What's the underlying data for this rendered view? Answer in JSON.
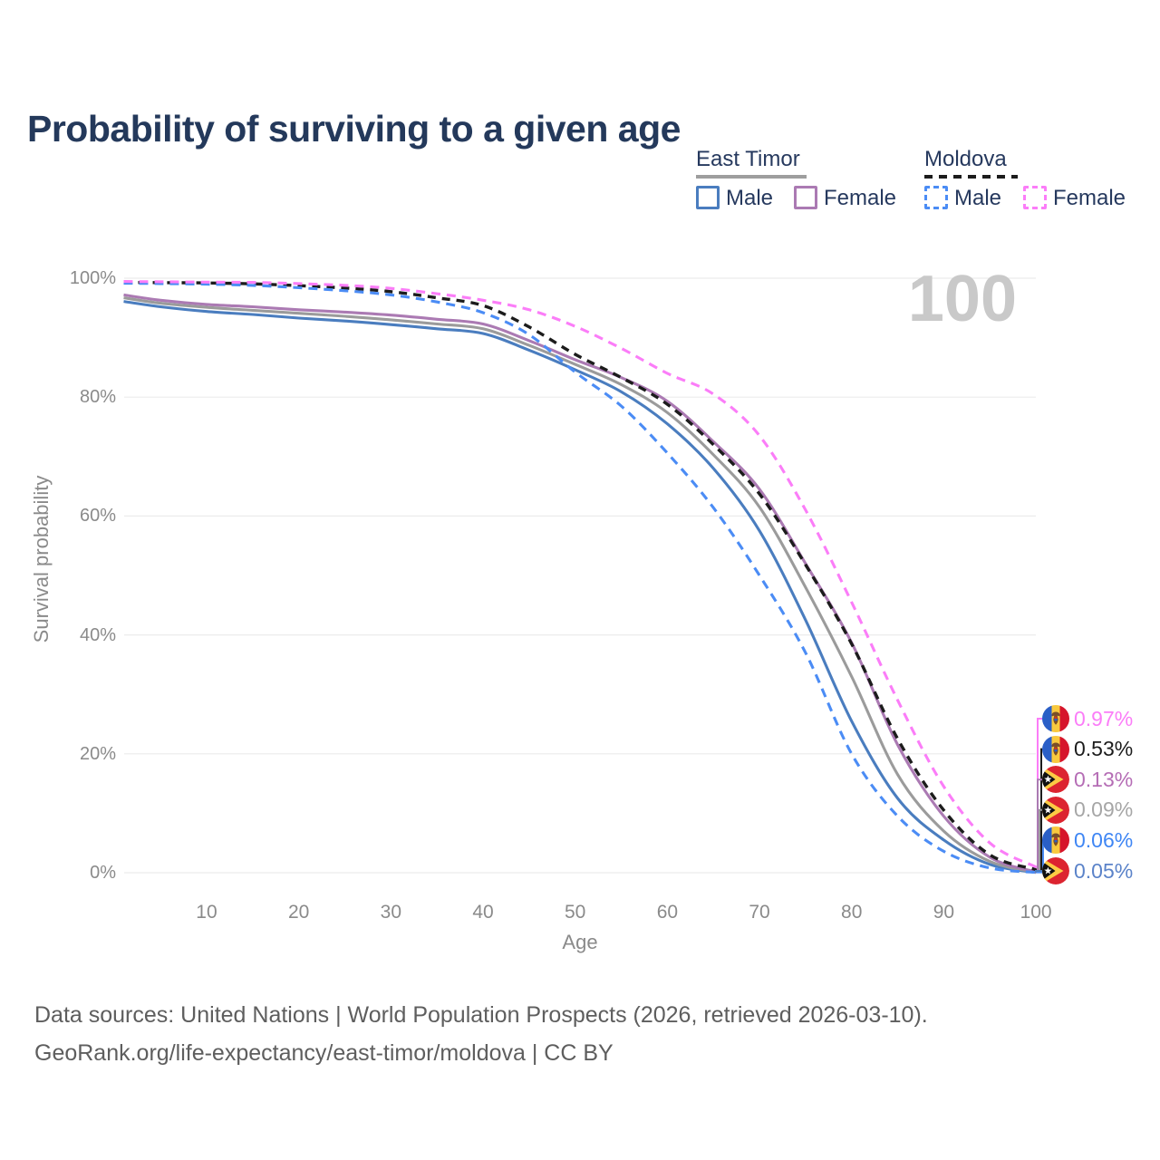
{
  "header": {
    "title": "Probability of surviving to a given age"
  },
  "watermark": "100",
  "legend": {
    "groups": [
      {
        "name": "East Timor",
        "line_style": "solid",
        "underline_color": "#9e9e9e",
        "items": [
          {
            "label": "Male",
            "color": "#4a7dbf",
            "box_style": "solid"
          },
          {
            "label": "Female",
            "color": "#ab7ab3",
            "box_style": "solid"
          }
        ]
      },
      {
        "name": "Moldova",
        "line_style": "dashed",
        "underline_color": "#1c1c1c",
        "items": [
          {
            "label": "Male",
            "color": "#4b8cf5",
            "box_style": "dashed"
          },
          {
            "label": "Female",
            "color": "#fb7df8",
            "box_style": "dashed"
          }
        ]
      }
    ]
  },
  "chart_data": {
    "type": "line",
    "title": "Probability of surviving to a given age",
    "xlabel": "Age",
    "ylabel": "Survival probability",
    "xlim": [
      1,
      100
    ],
    "ylim": [
      0,
      100
    ],
    "grid": "horizontal",
    "legend_position": "top-right",
    "x_tick_values": [
      10,
      20,
      30,
      40,
      50,
      60,
      70,
      80,
      90,
      100
    ],
    "y_tick_values": [
      100,
      80,
      60,
      40,
      20,
      0
    ],
    "y_tick_labels": [
      "100%",
      "80%",
      "60%",
      "40%",
      "20%",
      "0%"
    ],
    "ages": [
      1,
      5,
      10,
      15,
      20,
      25,
      30,
      35,
      40,
      45,
      50,
      55,
      60,
      65,
      70,
      75,
      80,
      85,
      90,
      95,
      100
    ],
    "series": [
      {
        "id": "et_male",
        "name": "East Timor Male",
        "country": "East Timor",
        "sex": "Male",
        "color": "#4a7dbf",
        "dash": false,
        "values": [
          96.1,
          95.2,
          94.4,
          93.9,
          93.3,
          92.8,
          92.2,
          91.5,
          90.7,
          87.9,
          84.6,
          80.9,
          75.5,
          68.0,
          57.5,
          42.5,
          25.5,
          12.5,
          5.5,
          1.4,
          0.05
        ]
      },
      {
        "id": "et_total",
        "name": "East Timor (both sexes)",
        "country": "East Timor",
        "sex": "Both",
        "color": "#9b9b9b",
        "dash": false,
        "values": [
          96.7,
          95.8,
          95.1,
          94.6,
          94.1,
          93.6,
          93.0,
          92.3,
          91.5,
          88.7,
          85.5,
          82.1,
          77.4,
          70.3,
          61.5,
          48.0,
          33.0,
          16.5,
          7.0,
          1.9,
          0.09
        ]
      },
      {
        "id": "et_female",
        "name": "East Timor Female",
        "country": "East Timor",
        "sex": "Female",
        "color": "#ab7ab3",
        "dash": false,
        "values": [
          97.2,
          96.3,
          95.6,
          95.2,
          94.7,
          94.3,
          93.8,
          93.1,
          92.3,
          89.5,
          86.3,
          83.3,
          79.3,
          72.5,
          64.5,
          52.0,
          38.7,
          21.5,
          9.5,
          2.6,
          0.13
        ]
      },
      {
        "id": "md_total",
        "name": "Moldova (both sexes)",
        "country": "Moldova",
        "sex": "Both",
        "color": "#1c1c1c",
        "dash": true,
        "values": [
          99.3,
          99.25,
          99.2,
          99.05,
          98.75,
          98.35,
          97.75,
          96.7,
          95.4,
          91.8,
          87.2,
          83.3,
          78.8,
          72.0,
          63.7,
          51.8,
          38.5,
          22.5,
          10.5,
          3.0,
          0.53
        ]
      },
      {
        "id": "md_male",
        "name": "Moldova Male",
        "country": "Moldova",
        "sex": "Male",
        "color": "#4b8cf5",
        "dash": true,
        "values": [
          99.15,
          99.1,
          99.0,
          98.8,
          98.4,
          97.9,
          97.2,
          96.0,
          94.2,
          90.5,
          84.2,
          78.5,
          70.6,
          61.4,
          50.0,
          37.0,
          20.0,
          9.5,
          3.6,
          0.8,
          0.06
        ]
      },
      {
        "id": "md_female",
        "name": "Moldova Female",
        "country": "Moldova",
        "sex": "Female",
        "color": "#fb7df8",
        "dash": true,
        "values": [
          99.45,
          99.4,
          99.35,
          99.3,
          99.1,
          98.8,
          98.3,
          97.4,
          96.3,
          94.7,
          91.9,
          88.2,
          84.0,
          80.5,
          73.5,
          61.0,
          45.5,
          29.0,
          14.5,
          5.0,
          0.97
        ]
      }
    ]
  },
  "end_labels": [
    {
      "series": "md_female",
      "flag": "moldova",
      "text": "0.97%",
      "color": "#fb7df8"
    },
    {
      "series": "md_total",
      "flag": "moldova",
      "text": "0.53%",
      "color": "#1c1c1c"
    },
    {
      "series": "et_female",
      "flag": "east-timor",
      "text": "0.13%",
      "color": "#b56db5"
    },
    {
      "series": "et_total",
      "flag": "east-timor",
      "text": "0.09%",
      "color": "#a6a6a6"
    },
    {
      "series": "md_male",
      "flag": "moldova",
      "text": "0.06%",
      "color": "#3f86f4"
    },
    {
      "series": "et_male",
      "flag": "east-timor",
      "text": "0.05%",
      "color": "#5b83c9"
    }
  ],
  "axis": {
    "x_title": "Age",
    "y_title": "Survival probability"
  },
  "colors": {
    "title_text": "#24395b",
    "axis_text": "#8a8a8a",
    "gridline": "#ececec",
    "watermark": "#c9c9c9",
    "footer_text": "#5e5e5e"
  },
  "footer": {
    "lines": [
      "Data sources: United Nations | World Population Prospects (2026, retrieved 2026-03-10).",
      "GeoRank.org/life-expectancy/east-timor/moldova | CC BY"
    ]
  }
}
